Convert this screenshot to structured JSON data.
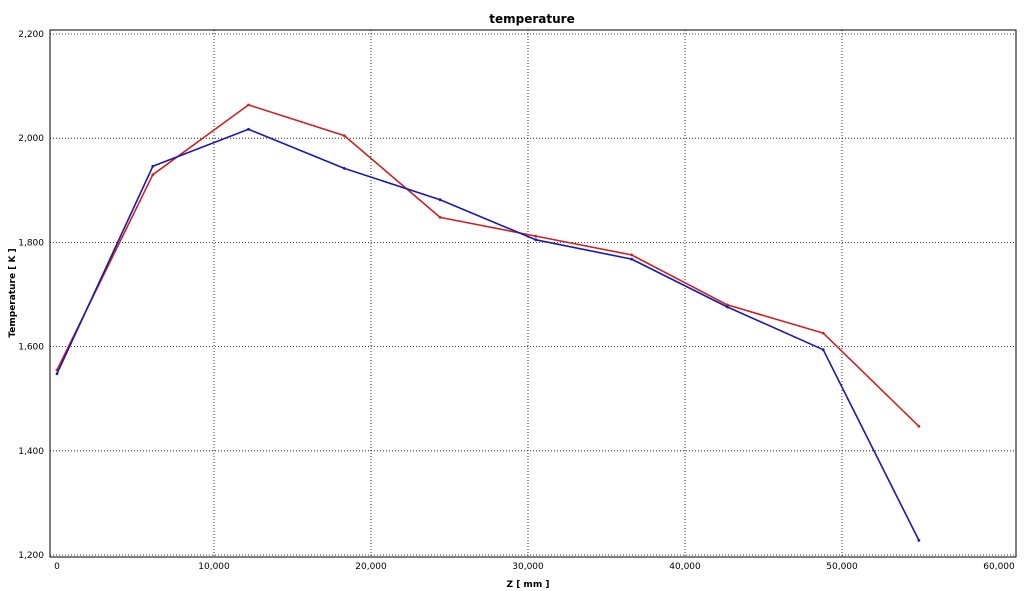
{
  "chart_data": {
    "type": "line",
    "title": "temperature",
    "xlabel": "Z [ mm ]",
    "ylabel": "Temperature [ K ]",
    "xlim": [
      0,
      60000
    ],
    "ylim": [
      1200,
      2200
    ],
    "x_ticks": [
      0,
      10000,
      20000,
      30000,
      40000,
      50000,
      60000
    ],
    "x_tick_labels": [
      "0",
      "10,000",
      "20,000",
      "30,000",
      "40,000",
      "50,000",
      "60,000"
    ],
    "y_ticks": [
      1200,
      1400,
      1600,
      1800,
      2000,
      2200
    ],
    "y_tick_labels": [
      "1,200",
      "1,400",
      "1,600",
      "1,800",
      "2,000",
      "2,200"
    ],
    "grid": true,
    "series": [
      {
        "color": "#cc2222",
        "x": [
          0,
          6100,
          12200,
          18300,
          24400,
          30500,
          36600,
          42700,
          48800,
          54900
        ],
        "y": [
          1555,
          1930,
          2064,
          2005,
          1848,
          1812,
          1776,
          1680,
          1626,
          1447
        ]
      },
      {
        "color": "#1a1aaa",
        "x": [
          0,
          6100,
          12200,
          18300,
          24400,
          30500,
          36600,
          42700,
          48800,
          54900
        ],
        "y": [
          1548,
          1946,
          2017,
          1942,
          1882,
          1805,
          1768,
          1676,
          1594,
          1228
        ]
      }
    ]
  }
}
